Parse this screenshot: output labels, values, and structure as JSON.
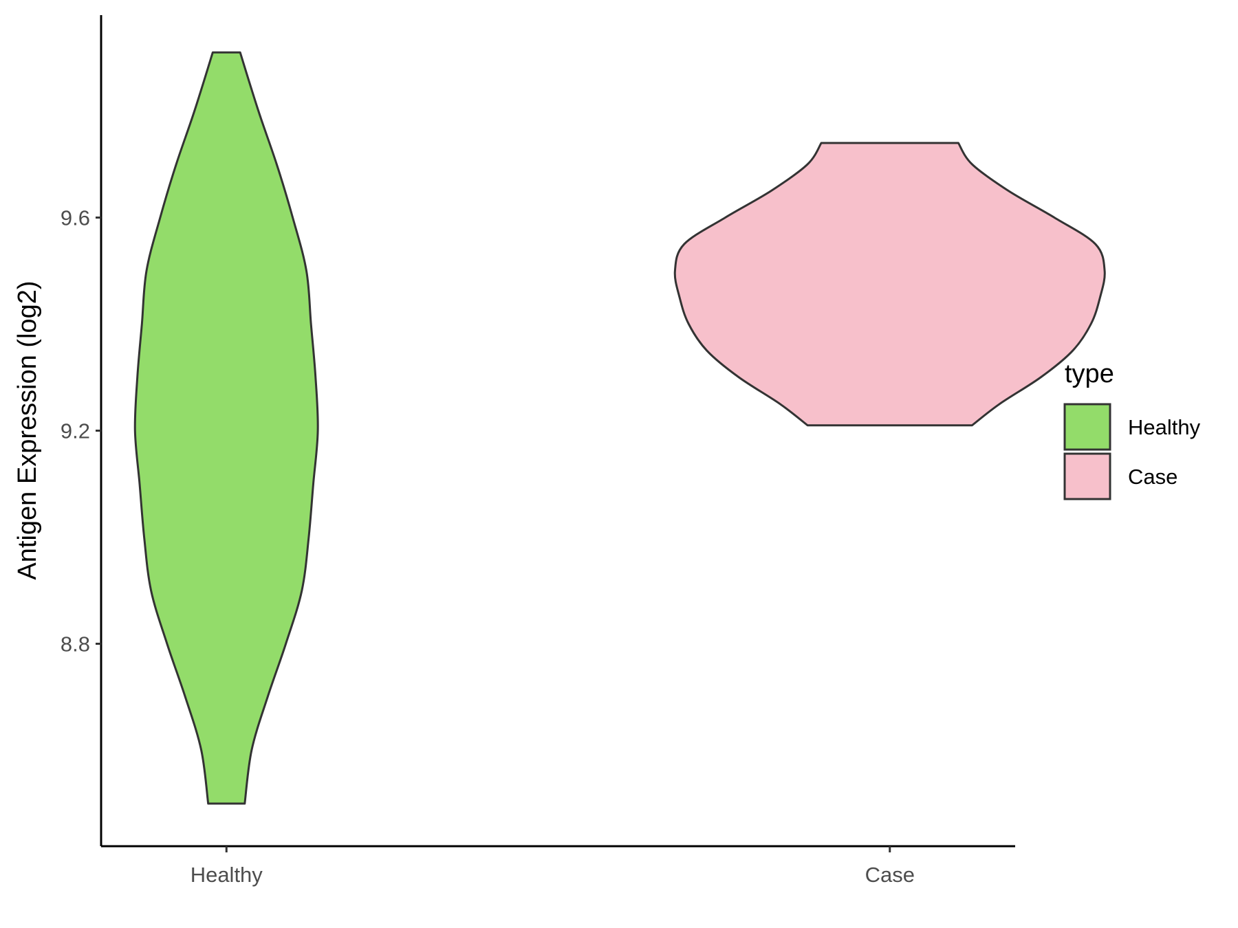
{
  "chart_data": {
    "type": "violin",
    "ylabel": "Antigen Expression (log2)",
    "xlabel": "",
    "categories": [
      "Healthy",
      "Case"
    ],
    "yticks": [
      8.8,
      9.2,
      9.6
    ],
    "ytick_labels": [
      "8.8",
      "9.2",
      "9.6"
    ],
    "ylim": [
      8.42,
      9.98
    ],
    "grid": false,
    "legend": {
      "title": "type",
      "position": "right",
      "entries": [
        {
          "label": "Healthy",
          "color": "#93dc6a"
        },
        {
          "label": "Case",
          "color": "#f7c0cb"
        }
      ]
    },
    "series": [
      {
        "category": "Healthy",
        "color": "#93dc6a",
        "min": 8.5,
        "max": 9.91,
        "profile": [
          [
            8.5,
            0.04
          ],
          [
            8.6,
            0.055
          ],
          [
            8.7,
            0.09
          ],
          [
            8.8,
            0.13
          ],
          [
            8.9,
            0.165
          ],
          [
            9.0,
            0.18
          ],
          [
            9.1,
            0.19
          ],
          [
            9.2,
            0.2
          ],
          [
            9.3,
            0.195
          ],
          [
            9.4,
            0.185
          ],
          [
            9.5,
            0.175
          ],
          [
            9.6,
            0.145
          ],
          [
            9.7,
            0.11
          ],
          [
            9.8,
            0.07
          ],
          [
            9.91,
            0.03
          ]
        ]
      },
      {
        "category": "Case",
        "color": "#f7c0cb",
        "min": 9.21,
        "max": 9.74,
        "profile": [
          [
            9.21,
            0.18
          ],
          [
            9.25,
            0.24
          ],
          [
            9.3,
            0.33
          ],
          [
            9.35,
            0.4
          ],
          [
            9.4,
            0.44
          ],
          [
            9.45,
            0.46
          ],
          [
            9.5,
            0.47
          ],
          [
            9.55,
            0.45
          ],
          [
            9.6,
            0.36
          ],
          [
            9.65,
            0.26
          ],
          [
            9.7,
            0.18
          ],
          [
            9.74,
            0.15
          ]
        ]
      }
    ]
  }
}
